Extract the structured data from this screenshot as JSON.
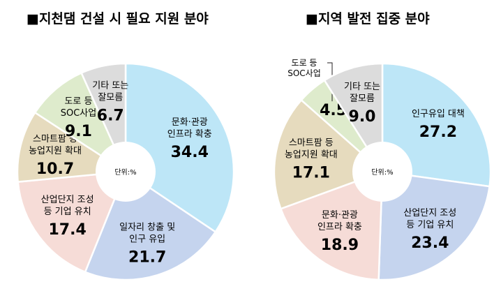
{
  "chart_data": [
    {
      "type": "pie",
      "title": "■지천댐 건설 시 필요 지원 분야",
      "unit": "단위:%",
      "slices": [
        {
          "label": [
            "문화·관광",
            "인프라 확충"
          ],
          "value": 34.4,
          "color": "#bde6f7"
        },
        {
          "label": [
            "일자리 창출 및",
            "인구 유입"
          ],
          "value": 21.7,
          "color": "#c5d4ee"
        },
        {
          "label": [
            "산업단지 조성",
            "등 기업 유치"
          ],
          "value": 17.4,
          "color": "#f6dcd7"
        },
        {
          "label": [
            "스마트팜 등",
            "농업지원 확대"
          ],
          "value": 10.7,
          "color": "#e6dbbe"
        },
        {
          "label": [
            "도로 등",
            "SOC사업"
          ],
          "value": 9.1,
          "color": "#deebcc"
        },
        {
          "label": [
            "기타 또는",
            "잘모름"
          ],
          "value": 6.7,
          "color": "#dcdcdc"
        }
      ]
    },
    {
      "type": "pie",
      "title": "■지역 발전 집중 분야",
      "unit": "단위:%",
      "slices": [
        {
          "label": [
            "인구유입 대책"
          ],
          "value": 27.2,
          "color": "#bde6f7"
        },
        {
          "label": [
            "산업단지 조성",
            "등 기업 유치"
          ],
          "value": 23.4,
          "color": "#c5d4ee"
        },
        {
          "label": [
            "문화·관광",
            "인프라 확충"
          ],
          "value": 18.9,
          "color": "#f6dcd7"
        },
        {
          "label": [
            "스마트팜 등",
            "농업지원 확대"
          ],
          "value": 17.1,
          "color": "#e6dbbe"
        },
        {
          "label": [
            "도로 등",
            "SOC사업"
          ],
          "value": 4.5,
          "color": "#deebcc"
        },
        {
          "label": [
            "기타 또는",
            "잘모름"
          ],
          "value": 9.0,
          "color": "#dcdcdc"
        }
      ]
    }
  ]
}
